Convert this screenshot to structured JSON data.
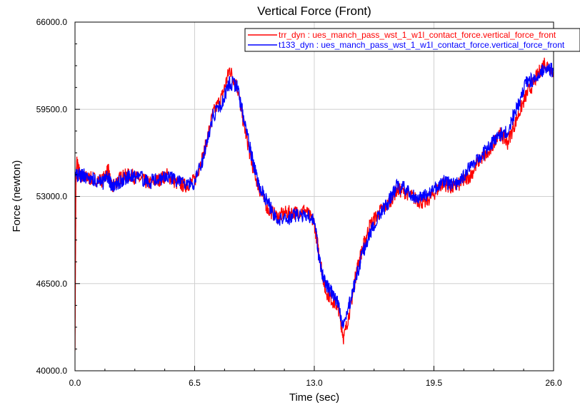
{
  "chart_data": {
    "type": "line",
    "title": "Vertical Force (Front)",
    "xlabel": "Time (sec)",
    "ylabel": "Force (newton)",
    "xlim": [
      0.0,
      26.0
    ],
    "ylim": [
      40000.0,
      66000.0
    ],
    "xticks": [
      "0.0",
      "6.5",
      "13.0",
      "19.5",
      "26.0"
    ],
    "yticks": [
      "40000.0",
      "46500.0",
      "53000.0",
      "59500.0",
      "66000.0"
    ],
    "grid": true,
    "legend_position": "top-right",
    "series": [
      {
        "name": "trr_dyn : ues_manch_pass_wst_1_w1l_contact_force.vertical_force_front",
        "color": "#ff0000",
        "x": [
          0.0,
          0.05,
          0.1,
          0.3,
          0.6,
          1.0,
          1.5,
          1.8,
          2.0,
          2.3,
          2.6,
          3.0,
          3.5,
          4.0,
          4.5,
          5.0,
          5.5,
          6.0,
          6.5,
          7.0,
          7.5,
          8.0,
          8.4,
          8.8,
          9.2,
          9.6,
          10.0,
          10.5,
          11.0,
          11.5,
          12.0,
          12.5,
          13.0,
          13.3,
          13.6,
          14.0,
          14.3,
          14.6,
          15.0,
          15.3,
          15.6,
          16.0,
          16.5,
          17.0,
          17.5,
          18.0,
          18.5,
          19.0,
          19.5,
          20.0,
          20.5,
          21.0,
          21.5,
          22.0,
          22.5,
          23.0,
          23.5,
          24.0,
          24.5,
          25.0,
          25.5,
          26.0
        ],
        "y": [
          41500,
          54000,
          55500,
          54500,
          54400,
          54300,
          54200,
          55000,
          53600,
          54200,
          54500,
          54600,
          54300,
          54000,
          54200,
          54600,
          54000,
          53800,
          54200,
          56200,
          59200,
          60500,
          62500,
          61200,
          58200,
          55500,
          53600,
          52000,
          51500,
          51800,
          51800,
          52000,
          51000,
          48400,
          46000,
          45200,
          44800,
          42400,
          45000,
          47500,
          49000,
          50800,
          51800,
          52400,
          53500,
          53300,
          52800,
          52500,
          53200,
          54000,
          53600,
          54000,
          54600,
          55800,
          56200,
          57800,
          57000,
          58800,
          60500,
          61700,
          63000,
          62300
        ]
      },
      {
        "name": "t133_dyn : ues_manch_pass_wst_1_w1l_contact_force.vertical_force_front",
        "color": "#0000ff",
        "x": [
          0.0,
          0.3,
          0.6,
          1.0,
          1.5,
          1.8,
          2.0,
          2.3,
          2.6,
          3.0,
          3.5,
          4.0,
          4.5,
          5.0,
          5.5,
          6.0,
          6.5,
          7.0,
          7.5,
          8.0,
          8.4,
          8.8,
          9.2,
          9.6,
          10.0,
          10.5,
          11.0,
          11.5,
          12.0,
          12.5,
          13.0,
          13.3,
          13.6,
          14.0,
          14.3,
          14.6,
          15.0,
          15.3,
          15.6,
          16.0,
          16.5,
          17.0,
          17.5,
          18.0,
          18.5,
          19.0,
          19.5,
          20.0,
          20.5,
          21.0,
          21.5,
          22.0,
          22.5,
          23.0,
          23.5,
          24.0,
          24.5,
          25.0,
          25.5,
          26.0
        ],
        "y": [
          54600,
          54600,
          54500,
          54300,
          54000,
          54500,
          53700,
          53900,
          54300,
          54500,
          54400,
          54000,
          54300,
          54500,
          54200,
          53800,
          54000,
          56000,
          59000,
          60000,
          61500,
          61200,
          58600,
          56000,
          53800,
          52500,
          51200,
          51300,
          51600,
          51700,
          51300,
          48000,
          46500,
          45800,
          45000,
          43200,
          45500,
          47000,
          48700,
          50200,
          51500,
          52500,
          53800,
          53600,
          52800,
          53000,
          53600,
          54200,
          53800,
          54300,
          55400,
          56000,
          56700,
          57500,
          58000,
          59500,
          61500,
          61800,
          62600,
          62400
        ]
      }
    ]
  }
}
